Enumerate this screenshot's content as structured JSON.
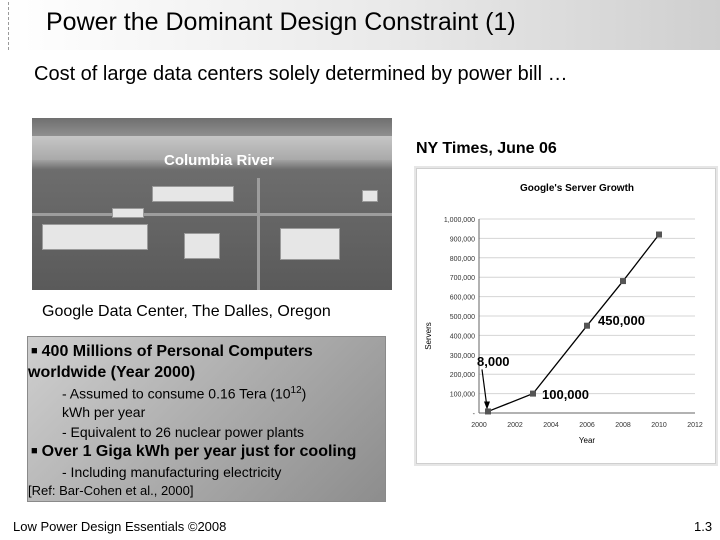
{
  "slide": {
    "title": "Power the Dominant Design Constraint (1)",
    "subtitle": "Cost of large data centers solely determined by power bill …",
    "footer_left": "Low Power Design Essentials ©2008",
    "footer_right": "1.3"
  },
  "photo": {
    "label": "Columbia River",
    "caption": "Google Data Center, The Dalles, Oregon"
  },
  "source": "NY Times, June 06",
  "infobox": {
    "bullet1_line1": "400 Millions of Personal Computers",
    "bullet1_line2": "worldwide (Year 2000)",
    "sub1_line1_pre": "- Assumed to consume 0.16 Tera (10",
    "sub1_sup": "12",
    "sub1_line1_post": ")",
    "sub1_line2": "kWh per year",
    "sub2": "- Equivalent to 26 nuclear power plants",
    "bullet2": "Over 1 Giga kWh per year just for cooling",
    "sub3": "- Including manufacturing electricity",
    "ref": "[Ref: Bar-Cohen et al., 2000]"
  },
  "chart_data": {
    "type": "line",
    "title": "Google's Server Growth",
    "xlabel": "Year",
    "ylabel": "Servers",
    "xlim": [
      2000,
      2012
    ],
    "ylim": [
      0,
      1000000
    ],
    "x_ticks": [
      "2000",
      "2002",
      "2004",
      "2006",
      "2008",
      "2010",
      "2012"
    ],
    "y_ticks": [
      "-",
      "100,000",
      "200,000",
      "300,000",
      "400,000",
      "500,000",
      "600,000",
      "700,000",
      "800,000",
      "900,000",
      "1,000,000"
    ],
    "x": [
      2000.5,
      2003,
      2006,
      2008,
      2010
    ],
    "y": [
      8000,
      100000,
      450000,
      680000,
      920000
    ],
    "grid": true,
    "callouts": [
      {
        "text": "8,000",
        "x": 2000.5,
        "y": 8000
      },
      {
        "text": "100,000",
        "x": 2003,
        "y": 100000
      },
      {
        "text": "450,000",
        "x": 2006,
        "y": 450000
      }
    ]
  }
}
